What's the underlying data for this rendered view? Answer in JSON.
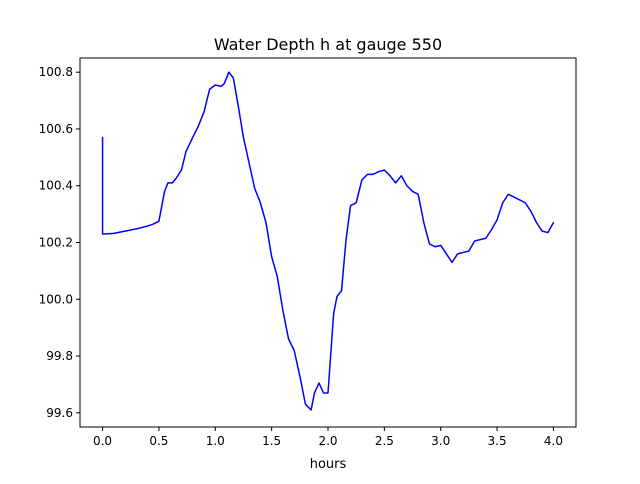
{
  "chart_data": {
    "type": "line",
    "title": "Water Depth h at gauge 550",
    "xlabel": "hours",
    "ylabel": "",
    "xlim": [
      -0.2,
      4.2
    ],
    "ylim": [
      99.55,
      100.85
    ],
    "x_ticks": [
      0.0,
      0.5,
      1.0,
      1.5,
      2.0,
      2.5,
      3.0,
      3.5,
      4.0
    ],
    "x_tick_labels": [
      "0.0",
      "0.5",
      "1.0",
      "1.5",
      "2.0",
      "2.5",
      "3.0",
      "3.5",
      "4.0"
    ],
    "y_ticks": [
      99.6,
      99.8,
      100.0,
      100.2,
      100.4,
      100.6,
      100.8
    ],
    "y_tick_labels": [
      "99.6",
      "99.8",
      "100.0",
      "100.2",
      "100.4",
      "100.6",
      "100.8"
    ],
    "grid": false,
    "legend": "none",
    "series": [
      {
        "color": "#0000ff",
        "x": [
          0.0,
          0.0,
          0.01,
          0.1,
          0.2,
          0.3,
          0.4,
          0.45,
          0.5,
          0.55,
          0.58,
          0.62,
          0.65,
          0.7,
          0.74,
          0.8,
          0.85,
          0.9,
          0.95,
          1.0,
          1.05,
          1.08,
          1.12,
          1.16,
          1.2,
          1.25,
          1.3,
          1.35,
          1.4,
          1.45,
          1.5,
          1.55,
          1.6,
          1.65,
          1.7,
          1.75,
          1.8,
          1.85,
          1.88,
          1.92,
          1.96,
          2.0,
          2.05,
          2.08,
          2.12,
          2.16,
          2.2,
          2.25,
          2.3,
          2.35,
          2.4,
          2.45,
          2.5,
          2.55,
          2.6,
          2.65,
          2.7,
          2.75,
          2.8,
          2.85,
          2.9,
          2.95,
          3.0,
          3.05,
          3.1,
          3.15,
          3.2,
          3.25,
          3.3,
          3.35,
          3.4,
          3.45,
          3.5,
          3.55,
          3.6,
          3.65,
          3.7,
          3.75,
          3.8,
          3.85,
          3.9,
          3.95,
          4.0
        ],
        "y": [
          100.57,
          100.23,
          100.23,
          100.232,
          100.24,
          100.248,
          100.258,
          100.265,
          100.275,
          100.38,
          100.41,
          100.41,
          100.425,
          100.455,
          100.52,
          100.57,
          100.61,
          100.66,
          100.74,
          100.755,
          100.75,
          100.76,
          100.8,
          100.78,
          100.69,
          100.57,
          100.48,
          100.39,
          100.34,
          100.27,
          100.15,
          100.08,
          99.96,
          99.86,
          99.82,
          99.73,
          99.63,
          99.61,
          99.67,
          99.705,
          99.67,
          99.67,
          99.95,
          100.01,
          100.03,
          100.21,
          100.33,
          100.34,
          100.42,
          100.44,
          100.44,
          100.45,
          100.455,
          100.435,
          100.41,
          100.435,
          100.4,
          100.38,
          100.37,
          100.27,
          100.195,
          100.185,
          100.19,
          100.16,
          100.13,
          100.16,
          100.165,
          100.17,
          100.205,
          100.21,
          100.215,
          100.245,
          100.28,
          100.34,
          100.37,
          100.36,
          100.35,
          100.34,
          100.31,
          100.27,
          100.24,
          100.235,
          100.27
        ]
      }
    ]
  }
}
